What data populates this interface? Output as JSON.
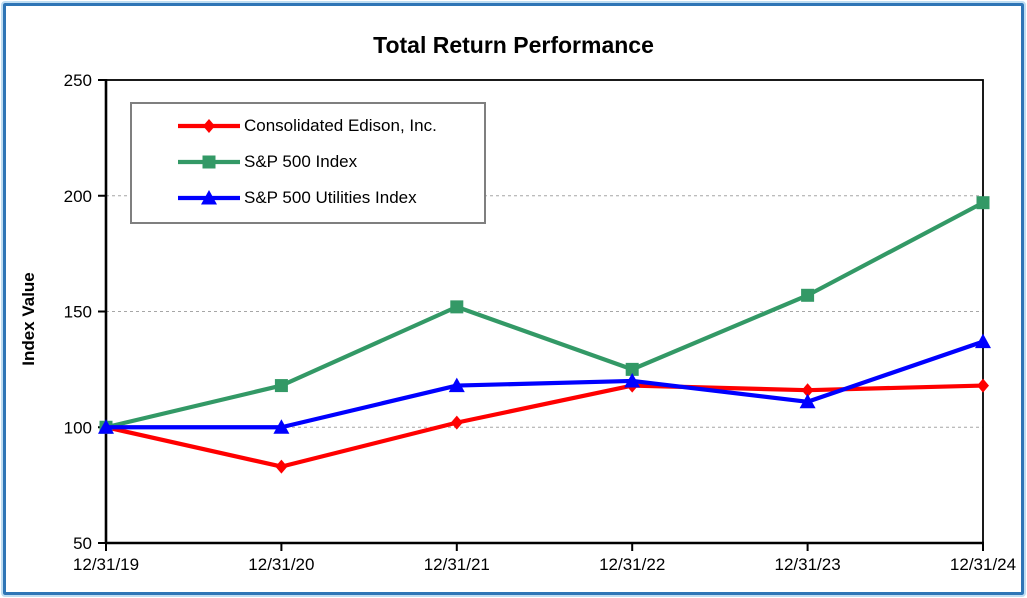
{
  "chart_data": {
    "type": "line",
    "title": "Total Return Performance",
    "xlabel": "",
    "ylabel": "Index Value",
    "categories": [
      "12/31/19",
      "12/31/20",
      "12/31/21",
      "12/31/22",
      "12/31/23",
      "12/31/24"
    ],
    "y_ticks": [
      250,
      200,
      150,
      100,
      50
    ],
    "ylim": [
      50,
      250
    ],
    "gridline_values": [
      200,
      150,
      100
    ],
    "grid_style": "horizontal dashed",
    "legend_position": "inside top-left",
    "series": [
      {
        "name": "Consolidated Edison, Inc.",
        "color": "#FF0000",
        "marker": "diamond",
        "values": [
          100,
          83,
          102,
          118,
          116,
          118
        ]
      },
      {
        "name": "S&P 500 Index",
        "color": "#339966",
        "marker": "square",
        "values": [
          100,
          118,
          152,
          125,
          157,
          197
        ]
      },
      {
        "name": "S&P 500 Utilities Index",
        "color": "#0000FF",
        "marker": "triangle",
        "values": [
          100,
          100,
          118,
          120,
          111,
          137
        ]
      }
    ],
    "draw_order": [
      0,
      1,
      2
    ]
  },
  "colors": {
    "frame_border": "#2E75B6",
    "frame_outer_glow": "#BFDDF2",
    "plot_border": "#000000",
    "gridline": "#A6A6A6",
    "legend_border": "#7F7F7F",
    "text": "#000000"
  }
}
